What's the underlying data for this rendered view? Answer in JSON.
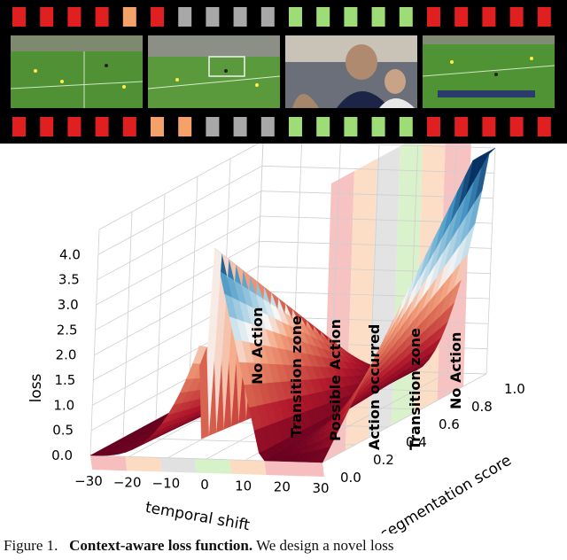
{
  "figure": {
    "filmstrip": {
      "hole_colors_top": [
        "#e02020",
        "#e02020",
        "#e02020",
        "#e02020",
        "#f4a16a",
        "#e02020",
        "#a8a8a8",
        "#a8a8a8",
        "#a8a8a8",
        "#a8a8a8",
        "#9ddc77",
        "#9ddc77",
        "#9ddc77",
        "#9ddc77",
        "#9ddc77",
        "#e02020",
        "#e02020",
        "#e02020",
        "#e02020",
        "#e02020"
      ],
      "hole_colors_bottom": [
        "#e02020",
        "#e02020",
        "#e02020",
        "#e02020",
        "#e02020",
        "#f4a16a",
        "#f4a16a",
        "#a8a8a8",
        "#a8a8a8",
        "#a8a8a8",
        "#9ddc77",
        "#9ddc77",
        "#9ddc77",
        "#9ddc77",
        "#9ddc77",
        "#e02020",
        "#e02020",
        "#e02020",
        "#e02020",
        "#e02020"
      ],
      "frames": [
        "soccer-frame-wide",
        "soccer-frame-goal",
        "soccer-frame-celebration",
        "soccer-frame-broadcast"
      ]
    },
    "zones": [
      "No Action",
      "Transition zone",
      "Possible Action",
      "Action occurred",
      "Transition zone",
      "No Action"
    ],
    "zone_colors": [
      "#f5b7b7",
      "#fbd8bd",
      "#dedede",
      "#d3f0c3",
      "#fbd8bd",
      "#f5b7b7"
    ],
    "caption": {
      "prefix": "Figure 1.",
      "title": "Context-aware loss function.",
      "text": "We design a novel loss"
    }
  },
  "chart_data": {
    "type": "surface",
    "title": "",
    "x_axis": {
      "label": "temporal shift",
      "ticks": [
        "−30",
        "−20",
        "−10",
        "0",
        "10",
        "20",
        "30"
      ],
      "range": [
        -30,
        30
      ]
    },
    "y_axis": {
      "label": "segmentation score",
      "ticks": [
        "0.0",
        "0.2",
        "0.4",
        "0.6",
        "0.8",
        "1.0"
      ],
      "range": [
        0,
        1
      ]
    },
    "z_axis": {
      "label": "loss",
      "ticks": [
        "0.0",
        "0.5",
        "1.0",
        "1.5",
        "2.0",
        "2.5",
        "3.0",
        "3.5",
        "4.0"
      ],
      "range": [
        0,
        4.5
      ]
    },
    "colormap": "RdBu_r",
    "grid": true
  }
}
